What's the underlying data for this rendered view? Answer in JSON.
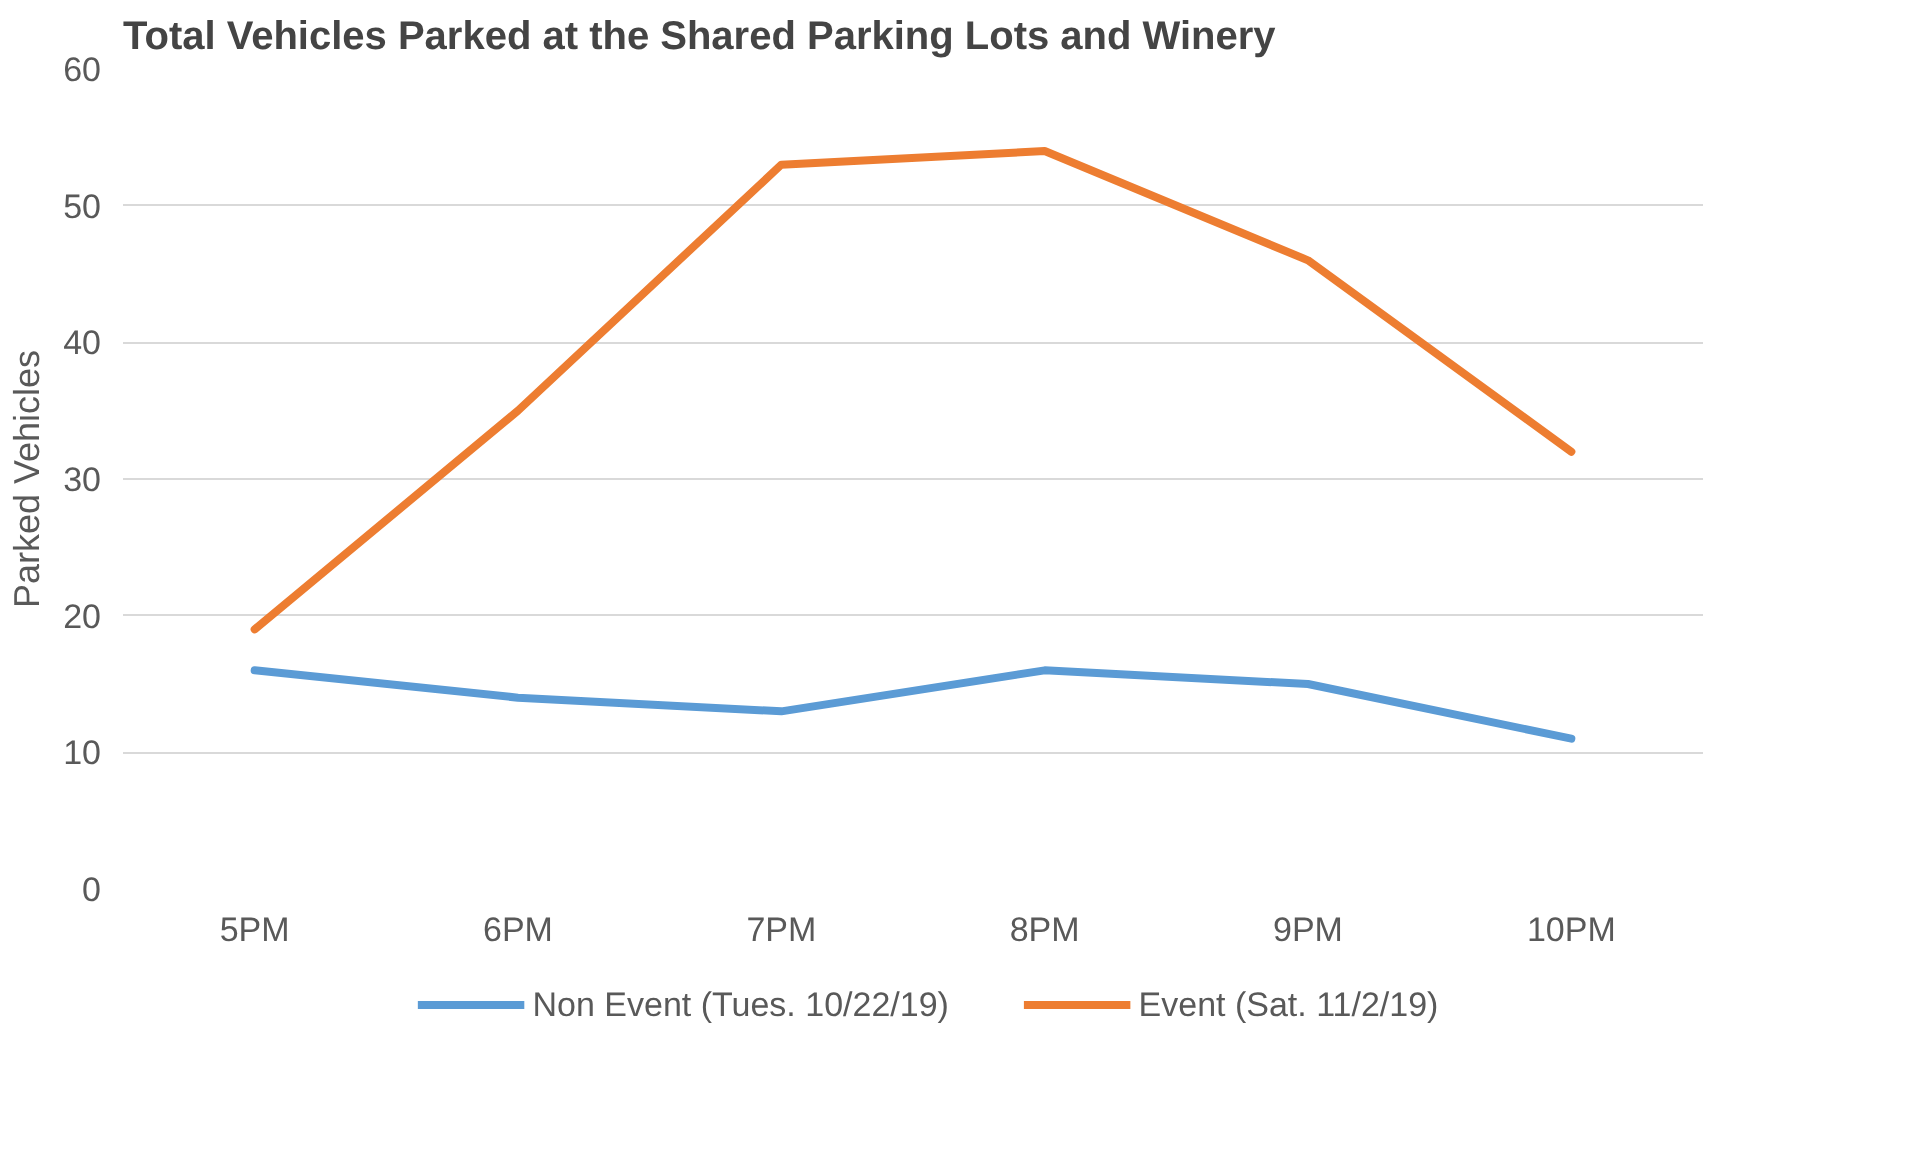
{
  "chart_data": {
    "type": "line",
    "title": "Total Vehicles Parked at the Shared Parking Lots and Winery",
    "ylabel": "Parked Vehicles",
    "categories": [
      "5PM",
      "6PM",
      "7PM",
      "8PM",
      "9PM",
      "10PM"
    ],
    "series": [
      {
        "name": "Non Event (Tues. 10/22/19)",
        "color": "#5b9bd5",
        "values": [
          16,
          14,
          13,
          16,
          15,
          11
        ]
      },
      {
        "name": "Event (Sat. 11/2/19)",
        "color": "#ed7d31",
        "values": [
          19,
          35,
          53,
          54,
          46,
          32
        ]
      }
    ],
    "ylim": [
      0,
      60
    ],
    "yticks": [
      0,
      10,
      20,
      30,
      40,
      50,
      60
    ],
    "grid": "y",
    "legend": "bottom",
    "marker": "none",
    "line_style": "solid"
  }
}
